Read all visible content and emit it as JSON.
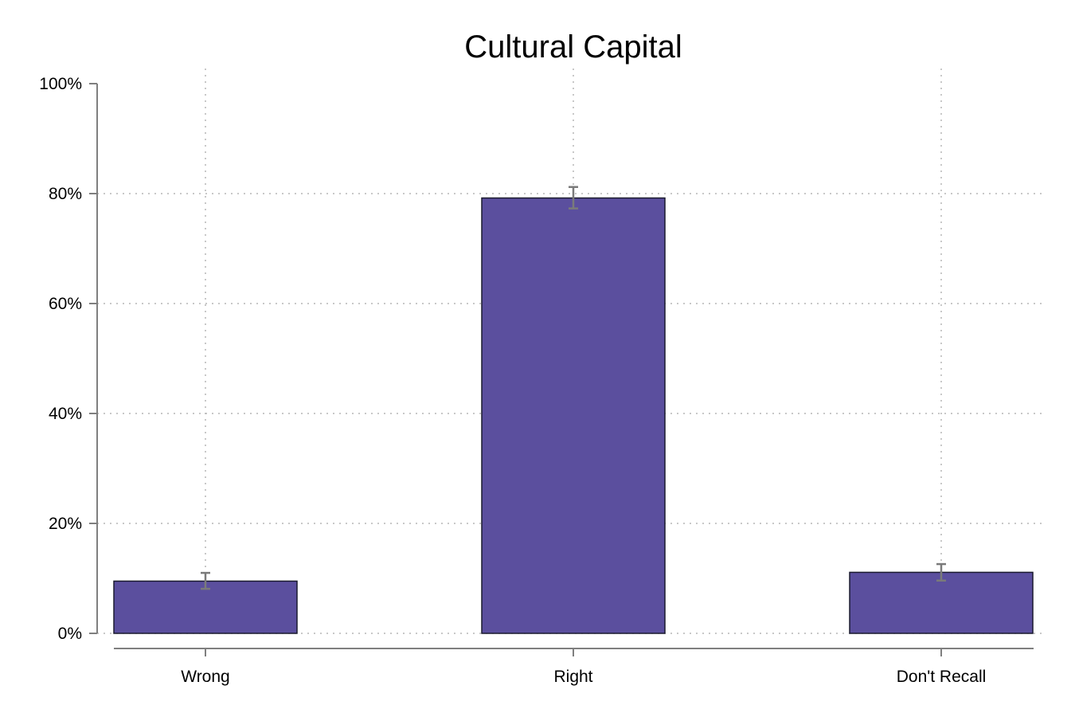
{
  "chart_data": {
    "type": "bar",
    "title": "Cultural Capital",
    "xlabel": "",
    "ylabel": "",
    "categories": [
      "Wrong",
      "Right",
      "Don't Recall"
    ],
    "values": [
      9.5,
      79.2,
      11.1
    ],
    "error_low": [
      8.1,
      77.3,
      9.6
    ],
    "error_high": [
      11.0,
      81.2,
      12.6
    ],
    "ylim": [
      0,
      100
    ],
    "y_ticks": [
      0,
      20,
      40,
      60,
      80,
      100
    ],
    "y_tick_labels": [
      "0%",
      "20%",
      "40%",
      "60%",
      "80%",
      "100%"
    ],
    "grid": true,
    "bar_color": "#5b4f9e",
    "error_color": "#7a7a7a"
  }
}
